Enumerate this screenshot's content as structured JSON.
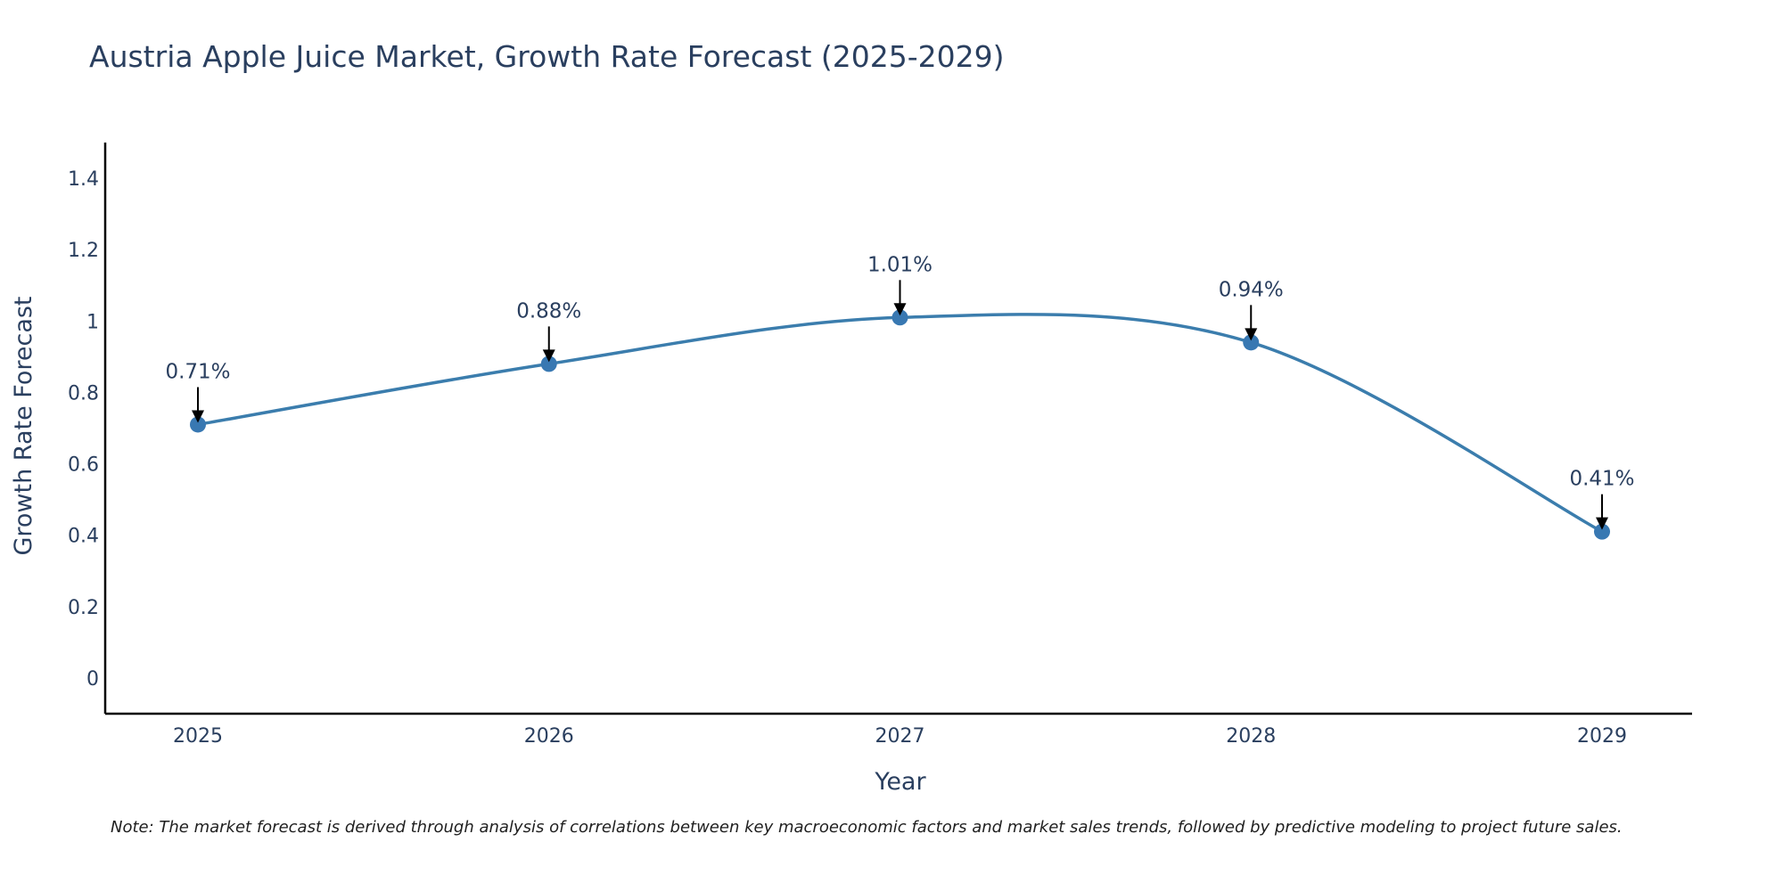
{
  "chart_data": {
    "type": "line",
    "title": "Austria Apple Juice Market, Growth Rate Forecast (2025-2029)",
    "xlabel": "Year",
    "ylabel": "Growth Rate Forecast",
    "categories": [
      "2025",
      "2026",
      "2027",
      "2028",
      "2029"
    ],
    "values": [
      0.71,
      0.88,
      1.01,
      0.94,
      0.41
    ],
    "data_labels": [
      "0.71%",
      "0.88%",
      "1.01%",
      "0.94%",
      "0.41%"
    ],
    "ylim": [
      -0.1,
      1.5
    ],
    "yticks": [
      0,
      0.2,
      0.4,
      0.6,
      0.8,
      1,
      1.2,
      1.4
    ],
    "ytick_labels": [
      "0",
      "0.2",
      "0.4",
      "0.6",
      "0.8",
      "1",
      "1.2",
      "1.4"
    ],
    "grid": false,
    "line_shape": "spline",
    "note": "Note: The market forecast is derived through analysis of correlations between key macroeconomic factors and market sales trends, followed by predictive modeling to project future sales."
  },
  "colors": {
    "series_line": "#3b7dad",
    "series_marker": "#3878b2",
    "axis": "#000000",
    "arrow": "#000000",
    "text": "#2a3f5f"
  }
}
